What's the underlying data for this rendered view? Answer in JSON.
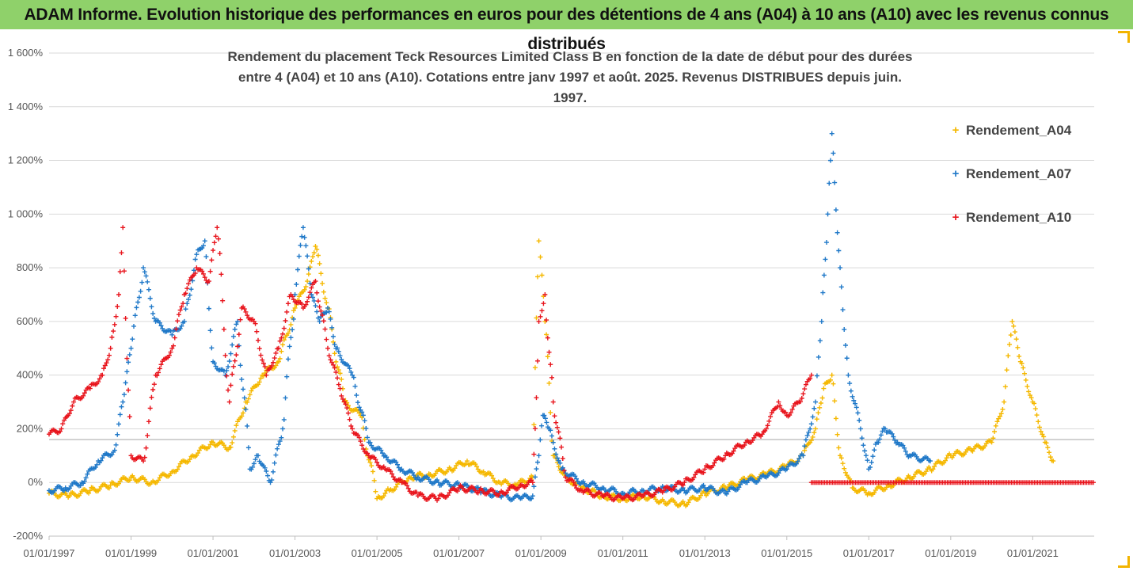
{
  "banner": {
    "title": "ADAM Informe. Evolution historique des performances en euros pour des détentions de 4 ans (A04) à 10 ans (A10) avec les revenus connus distribués"
  },
  "chart_data": {
    "type": "scatter",
    "title_line1": "Rendement du placement Teck Resources Limited Class B en fonction de la date de début pour des durées",
    "title_line2": "entre 4 (A04) et 10 ans (A10). Cotations entre janv 1997 et août. 2025. Revenus DISTRIBUES depuis juin. 1997.",
    "xlim": [
      1997.0,
      2022.5
    ],
    "ylim": [
      -200,
      1600
    ],
    "y_ticks": [
      -200,
      0,
      200,
      400,
      600,
      800,
      1000,
      1200,
      1400,
      1600
    ],
    "y_tick_labels": [
      "-200%",
      "0%",
      "200%",
      "400%",
      "600%",
      "800%",
      "1 000%",
      "1 200%",
      "1 400%",
      "1 600%"
    ],
    "x_ticks": [
      1997,
      1999,
      2001,
      2003,
      2005,
      2007,
      2009,
      2011,
      2013,
      2015,
      2017,
      2019,
      2021
    ],
    "x_tick_labels": [
      "01/01/1997",
      "01/01/1999",
      "01/01/2001",
      "01/01/2003",
      "01/01/2005",
      "01/01/2007",
      "01/01/2009",
      "01/01/2011",
      "01/01/2013",
      "01/01/2015",
      "01/01/2017",
      "01/01/2019",
      "01/01/2021"
    ],
    "reference_line_y": 160,
    "legend_placement": "top-right",
    "series": [
      {
        "name": "Rendement_A04",
        "color": "#f5b800",
        "x": [
          1997.0,
          1997.5,
          1998.0,
          1998.5,
          1999.0,
          1999.5,
          2000.0,
          2000.5,
          2001.0,
          2001.4,
          2001.8,
          2002.2,
          2002.6,
          2003.0,
          2003.3,
          2003.5,
          2003.8,
          2004.2,
          2004.6,
          2005.0,
          2005.3,
          2005.8,
          2006.3,
          2006.8,
          2007.2,
          2007.6,
          2008.0,
          2008.4,
          2008.8,
          2008.95,
          2009.1,
          2009.3,
          2009.6,
          2010.0,
          2010.5,
          2011.0,
          2011.5,
          2012.0,
          2012.5,
          2013.0,
          2013.5,
          2014.0,
          2014.5,
          2015.0,
          2015.4,
          2015.7,
          2015.9,
          2016.1,
          2016.3,
          2016.6,
          2017.0,
          2017.5,
          2018.0,
          2018.5,
          2019.0,
          2019.5,
          2020.0,
          2020.3,
          2020.5,
          2020.7,
          2021.0,
          2021.3,
          2021.5
        ],
        "y": [
          -40,
          -50,
          -30,
          -10,
          20,
          0,
          40,
          100,
          150,
          130,
          300,
          400,
          450,
          650,
          750,
          880,
          650,
          300,
          250,
          -60,
          -30,
          20,
          30,
          50,
          80,
          40,
          0,
          -10,
          20,
          900,
          600,
          100,
          20,
          -20,
          -50,
          -60,
          -50,
          -70,
          -80,
          -40,
          -20,
          10,
          30,
          60,
          100,
          200,
          350,
          400,
          100,
          -20,
          -40,
          -10,
          20,
          50,
          100,
          120,
          150,
          300,
          600,
          450,
          300,
          150,
          80
        ]
      },
      {
        "name": "Rendement_A07",
        "color": "#1f78c8",
        "x": [
          1997.0,
          1997.4,
          1997.8,
          1998.2,
          1998.6,
          1998.8,
          1999.0,
          1999.3,
          1999.6,
          2000.0,
          2000.3,
          2000.6,
          2000.8,
          2001.0,
          2001.3,
          2001.6,
          2001.9,
          2002.1,
          2002.4,
          2002.7,
          2003.0,
          2003.2,
          2003.4,
          2003.6,
          2003.8,
          2004.0,
          2004.4,
          2004.8,
          2005.2,
          2005.6,
          2006.0,
          2006.5,
          2007.0,
          2007.5,
          2008.0,
          2008.5,
          2008.8,
          2008.95,
          2009.05,
          2009.2,
          2009.5,
          2010.0,
          2010.5,
          2011.0,
          2011.5,
          2012.0,
          2012.5,
          2013.0,
          2013.5,
          2014.0,
          2014.5,
          2015.0,
          2015.4,
          2015.7,
          2015.85,
          2016.0,
          2016.1,
          2016.3,
          2016.5,
          2016.8,
          2017.0,
          2017.2,
          2017.4,
          2017.7,
          2018.0,
          2018.5
        ],
        "y": [
          -30,
          -20,
          0,
          80,
          120,
          300,
          500,
          800,
          600,
          550,
          600,
          850,
          900,
          450,
          400,
          600,
          50,
          100,
          0,
          200,
          700,
          950,
          700,
          600,
          650,
          500,
          400,
          150,
          100,
          50,
          20,
          0,
          -10,
          -30,
          -50,
          -60,
          -50,
          100,
          250,
          200,
          50,
          0,
          -20,
          -40,
          -30,
          -20,
          -30,
          -20,
          -40,
          0,
          20,
          50,
          100,
          300,
          600,
          1000,
          1300,
          800,
          400,
          200,
          50,
          150,
          200,
          150,
          100,
          80
        ]
      },
      {
        "name": "Rendement_A10",
        "color": "#e8141c",
        "x": [
          1997.0,
          1997.3,
          1997.6,
          1998.0,
          1998.3,
          1998.5,
          1998.7,
          1998.8,
          1999.0,
          1999.3,
          1999.6,
          2000.0,
          2000.3,
          2000.6,
          2000.9,
          2001.1,
          2001.4,
          2001.7,
          2002.0,
          2002.3,
          2002.6,
          2002.9,
          2003.2,
          2003.5,
          2003.8,
          2004.1,
          2004.4,
          2004.8,
          2005.2,
          2005.6,
          2006.0,
          2006.5,
          2007.0,
          2007.5,
          2008.0,
          2008.5,
          2008.8,
          2008.95,
          2009.1,
          2009.3,
          2009.6,
          2010.0,
          2010.5,
          2011.0,
          2011.5,
          2012.0,
          2012.5,
          2013.0,
          2013.5,
          2014.0,
          2014.4,
          2014.8,
          2015.0,
          2015.3,
          2015.6
        ],
        "y": [
          180,
          200,
          300,
          350,
          400,
          500,
          700,
          950,
          100,
          80,
          400,
          500,
          700,
          800,
          750,
          950,
          300,
          650,
          600,
          400,
          500,
          700,
          650,
          750,
          500,
          350,
          200,
          100,
          50,
          0,
          -50,
          -60,
          -20,
          -30,
          -40,
          -10,
          0,
          600,
          700,
          300,
          20,
          -30,
          -50,
          -60,
          -50,
          -30,
          0,
          50,
          100,
          150,
          180,
          300,
          250,
          300,
          400
        ],
        "x_flat_start": 2015.6,
        "x_flat_end": 2022.5,
        "y_flat": 0
      }
    ]
  }
}
